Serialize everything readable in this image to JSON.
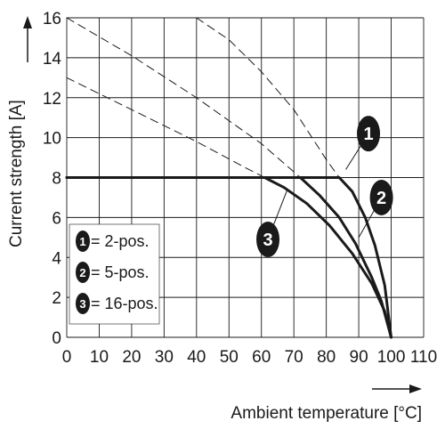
{
  "chart_data": {
    "type": "line",
    "title": "",
    "xlabel": "Ambient temperature [°C]",
    "ylabel": "Current strength [A]",
    "xlim": [
      0,
      110
    ],
    "ylim": [
      0,
      16
    ],
    "x_ticks": [
      0,
      10,
      20,
      30,
      40,
      50,
      60,
      70,
      80,
      90,
      100,
      110
    ],
    "y_ticks": [
      0,
      2,
      4,
      6,
      8,
      10,
      12,
      14,
      16
    ],
    "x_tick_labels": [
      "0",
      "10",
      "20",
      "30",
      "40",
      "50",
      "60",
      "70",
      "80",
      "90",
      "100",
      "110"
    ],
    "y_tick_labels": [
      "0",
      "2",
      "4",
      "6",
      "8",
      "10",
      "12",
      "14",
      "16"
    ],
    "grid": true,
    "legend_position": "bottom-left",
    "legend": [
      {
        "marker": "1",
        "label": "= 2-pos."
      },
      {
        "marker": "2",
        "label": "= 5-pos."
      },
      {
        "marker": "3",
        "label": "= 16-pos."
      }
    ],
    "series": [
      {
        "marker": "1",
        "style": "solid",
        "x": [
          0,
          84,
          88,
          92,
          95,
          98,
          100
        ],
        "y": [
          8,
          8,
          7.3,
          6.0,
          4.6,
          2.6,
          0
        ]
      },
      {
        "marker": "2",
        "style": "solid",
        "x": [
          0,
          72,
          78,
          84,
          89,
          94,
          97,
          100
        ],
        "y": [
          8,
          8,
          7.1,
          6.0,
          4.7,
          3.0,
          1.8,
          0
        ]
      },
      {
        "marker": "3",
        "style": "solid",
        "x": [
          0,
          61,
          67,
          74,
          81,
          88,
          94,
          98,
          100
        ],
        "y": [
          8,
          8,
          7.5,
          6.7,
          5.6,
          4.2,
          2.7,
          1.3,
          0
        ]
      },
      {
        "marker": "1",
        "style": "dashed",
        "x": [
          40,
          50,
          60,
          70,
          80,
          84
        ],
        "y": [
          16,
          14.9,
          13.3,
          11.4,
          8.9,
          8
        ]
      },
      {
        "marker": "2",
        "style": "dashed",
        "x": [
          0,
          20,
          40,
          60,
          72
        ],
        "y": [
          16,
          14.1,
          12.0,
          9.7,
          8
        ]
      },
      {
        "marker": "3",
        "style": "dashed",
        "x": [
          0,
          20,
          40,
          55,
          61
        ],
        "y": [
          13,
          11.4,
          9.8,
          8.5,
          8
        ]
      }
    ],
    "callouts": [
      {
        "marker": "1",
        "at": [
          86,
          8.4
        ],
        "badge_at": [
          93,
          10.2
        ]
      },
      {
        "marker": "2",
        "at": [
          90,
          5.0
        ],
        "badge_at": [
          97,
          7.0
        ]
      },
      {
        "marker": "3",
        "at": [
          68,
          7.4
        ],
        "badge_at": [
          62,
          4.9
        ]
      }
    ],
    "colors": {
      "curve": "#1a1a1a",
      "grid": "#1a1a1a",
      "badge": "#1a1a1a"
    }
  }
}
